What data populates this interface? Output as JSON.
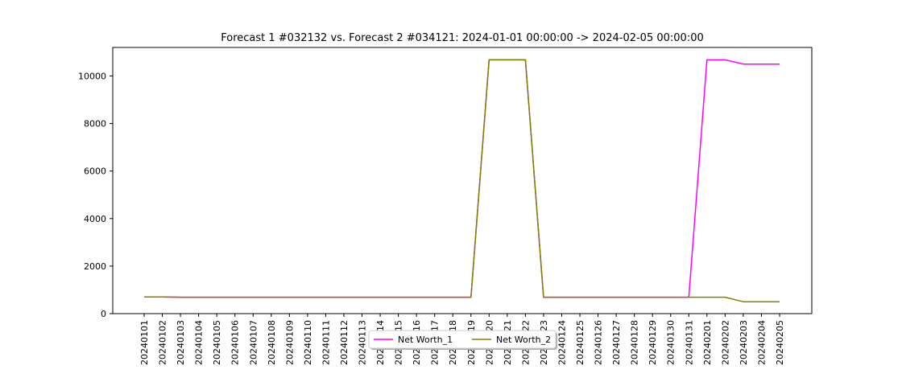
{
  "chart_data": {
    "type": "line",
    "title": "Forecast 1 #032132 vs. Forecast 2 #034121: 2024-01-01 00:00:00 -> 2024-02-05 00:00:00",
    "xlabel": "",
    "ylabel": "",
    "ylim": [
      0,
      11200
    ],
    "yticks": [
      0,
      2000,
      4000,
      6000,
      8000,
      10000
    ],
    "grid": false,
    "legend_position": "bottom-center",
    "categories": [
      "20240101",
      "20240102",
      "20240103",
      "20240104",
      "20240105",
      "20240106",
      "20240107",
      "20240108",
      "20240109",
      "20240110",
      "20240111",
      "20240112",
      "20240113",
      "20240114",
      "20240115",
      "20240116",
      "20240117",
      "20240118",
      "20240119",
      "20240120",
      "20240121",
      "20240122",
      "20240123",
      "20240124",
      "20240125",
      "20240126",
      "20240127",
      "20240128",
      "20240129",
      "20240130",
      "20240131",
      "20240201",
      "20240202",
      "20240203",
      "20240204",
      "20240205"
    ],
    "series": [
      {
        "name": "Net Worth_1",
        "color": "#ff00ff",
        "values": [
          700,
          700,
          690,
          690,
          690,
          690,
          690,
          690,
          690,
          690,
          690,
          690,
          690,
          690,
          690,
          690,
          690,
          690,
          690,
          10680,
          10680,
          10680,
          690,
          690,
          690,
          690,
          690,
          690,
          690,
          690,
          690,
          10680,
          10680,
          10500,
          10500,
          10500
        ]
      },
      {
        "name": "Net Worth_2",
        "color": "#808000",
        "values": [
          700,
          700,
          690,
          690,
          690,
          690,
          690,
          690,
          690,
          690,
          690,
          690,
          690,
          690,
          690,
          690,
          690,
          690,
          690,
          10680,
          10680,
          10680,
          690,
          690,
          690,
          690,
          690,
          690,
          690,
          690,
          690,
          690,
          690,
          500,
          500,
          500
        ]
      }
    ]
  }
}
